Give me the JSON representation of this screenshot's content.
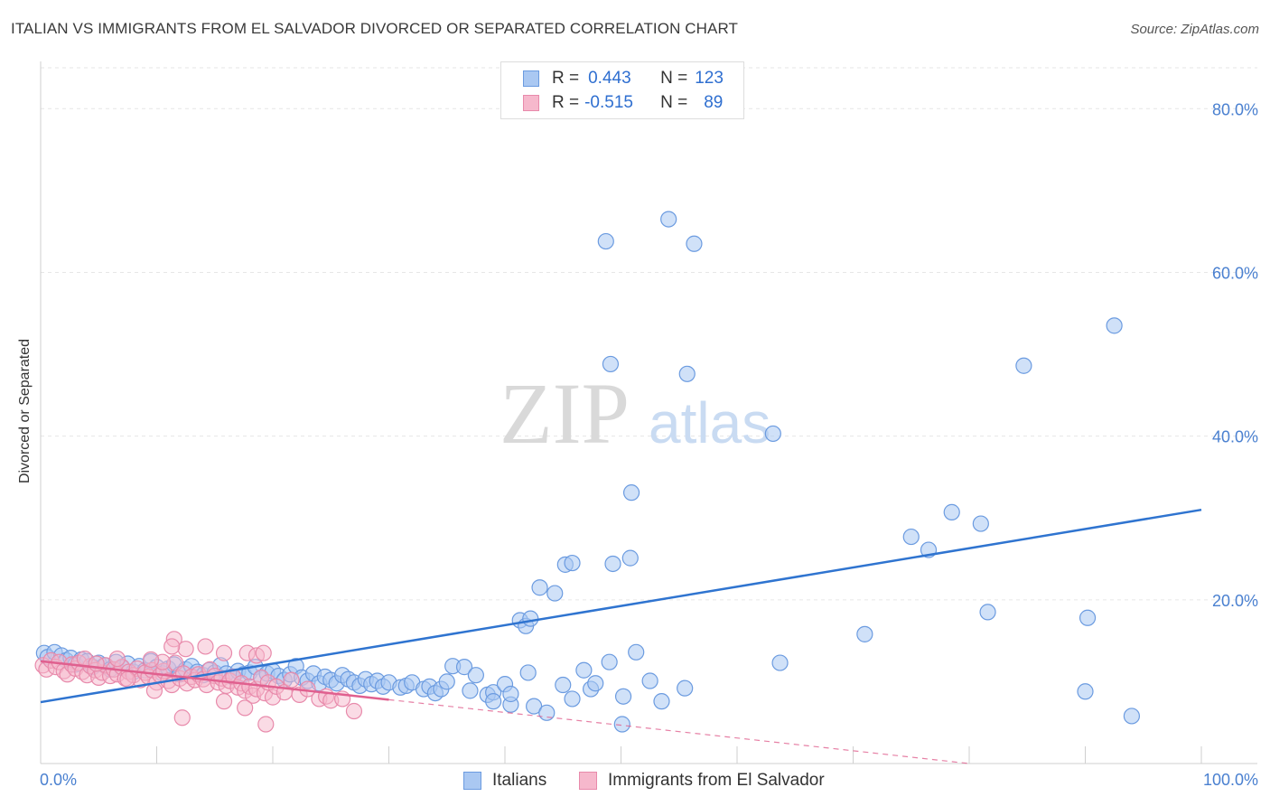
{
  "header": {
    "title": "ITALIAN VS IMMIGRANTS FROM EL SALVADOR DIVORCED OR SEPARATED CORRELATION CHART",
    "source": "Source: ZipAtlas.com"
  },
  "watermark": {
    "zip": "ZIP",
    "atlas": "atlas"
  },
  "legend": {
    "rows": [
      {
        "r_label": "R =",
        "r_value": "0.443",
        "n_label": "N =",
        "n_value": "123"
      },
      {
        "r_label": "R =",
        "r_value": "-0.515",
        "n_label": "N =",
        "n_value": "89"
      }
    ]
  },
  "bottom_legend": {
    "italians": "Italians",
    "salvador": "Immigrants from El Salvador"
  },
  "colors": {
    "italians_fill": "#aac8f2",
    "italians_stroke": "#6b9be0",
    "italians_line": "#2f74d0",
    "salvador_fill": "#f6b8cc",
    "salvador_stroke": "#e88aab",
    "salvador_line": "#e0608f",
    "grid": "#e6e6e6",
    "tick_text": "#4a80d0"
  },
  "chart_data": {
    "type": "scatter",
    "title": "ITALIAN VS IMMIGRANTS FROM EL SALVADOR DIVORCED OR SEPARATED CORRELATION CHART",
    "xlabel": "",
    "ylabel": "Divorced or Separated",
    "xlim": [
      0,
      100
    ],
    "ylim": [
      0,
      85
    ],
    "x_tick_labels": [
      "0.0%",
      "100.0%"
    ],
    "y_ticks": [
      20,
      40,
      60,
      80
    ],
    "y_tick_labels": [
      "20.0%",
      "40.0%",
      "60.0%",
      "80.0%"
    ],
    "grid": true,
    "legend_position": "top-center",
    "series": [
      {
        "name": "Italians",
        "r": 0.443,
        "n": 123,
        "trend": {
          "x0": 0,
          "y0": 7.5,
          "x1": 100,
          "y1": 31
        },
        "points": [
          [
            0.3,
            13.5
          ],
          [
            0.6,
            13
          ],
          [
            1.2,
            13.6
          ],
          [
            1.8,
            13.2
          ],
          [
            2.2,
            12.6
          ],
          [
            2.6,
            12.9
          ],
          [
            3,
            12.1
          ],
          [
            3.5,
            12.7
          ],
          [
            4,
            12.5
          ],
          [
            4.5,
            11.8
          ],
          [
            5,
            12.3
          ],
          [
            5.5,
            12
          ],
          [
            6,
            11.5
          ],
          [
            6.5,
            12.4
          ],
          [
            7,
            11.7
          ],
          [
            7.5,
            12.2
          ],
          [
            8,
            11.2
          ],
          [
            8.5,
            11.9
          ],
          [
            9,
            11.4
          ],
          [
            9.5,
            12.5
          ],
          [
            10,
            11.8
          ],
          [
            10.5,
            11
          ],
          [
            11,
            11.6
          ],
          [
            11.5,
            12.1
          ],
          [
            12,
            10.9
          ],
          [
            12.5,
            11.5
          ],
          [
            13,
            11.9
          ],
          [
            13.5,
            11.2
          ],
          [
            14,
            10.8
          ],
          [
            14.5,
            11.4
          ],
          [
            15,
            11.1
          ],
          [
            15.5,
            12
          ],
          [
            16,
            11
          ],
          [
            16.5,
            10.6
          ],
          [
            17,
            11.3
          ],
          [
            17.5,
            10.9
          ],
          [
            18,
            11.1
          ],
          [
            18.5,
            11.8
          ],
          [
            19,
            10.4
          ],
          [
            19.5,
            11
          ],
          [
            20,
            11.3
          ],
          [
            20.5,
            10.7
          ],
          [
            21,
            10.2
          ],
          [
            21.5,
            10.9
          ],
          [
            22,
            11.9
          ],
          [
            22.5,
            10.5
          ],
          [
            23,
            10.1
          ],
          [
            23.5,
            11
          ],
          [
            24,
            9.8
          ],
          [
            24.5,
            10.6
          ],
          [
            25,
            10.2
          ],
          [
            25.5,
            9.8
          ],
          [
            26,
            10.8
          ],
          [
            26.5,
            10.3
          ],
          [
            27,
            9.9
          ],
          [
            27.5,
            9.5
          ],
          [
            28,
            10.3
          ],
          [
            28.5,
            9.7
          ],
          [
            29,
            10.1
          ],
          [
            29.5,
            9.4
          ],
          [
            30,
            9.9
          ],
          [
            31,
            9.3
          ],
          [
            31.5,
            9.5
          ],
          [
            32,
            9.9
          ],
          [
            33,
            9.1
          ],
          [
            33.5,
            9.4
          ],
          [
            34,
            8.6
          ],
          [
            34.5,
            9.1
          ],
          [
            35,
            10
          ],
          [
            35.5,
            11.9
          ],
          [
            36.5,
            11.8
          ],
          [
            37,
            8.9
          ],
          [
            37.5,
            10.8
          ],
          [
            38.5,
            8.4
          ],
          [
            39,
            8.7
          ],
          [
            39,
            7.6
          ],
          [
            40,
            9.7
          ],
          [
            40.5,
            7.2
          ],
          [
            40.5,
            8.5
          ],
          [
            42,
            11.1
          ],
          [
            41.3,
            17.5
          ],
          [
            41.8,
            16.8
          ],
          [
            42.2,
            17.7
          ],
          [
            42.5,
            7
          ],
          [
            43,
            21.5
          ],
          [
            43.6,
            6.2
          ],
          [
            44.3,
            20.8
          ],
          [
            45.2,
            24.3
          ],
          [
            45.8,
            24.5
          ],
          [
            45,
            9.6
          ],
          [
            45.8,
            7.9
          ],
          [
            46.8,
            11.4
          ],
          [
            47.4,
            9.1
          ],
          [
            47.8,
            9.8
          ],
          [
            49,
            12.4
          ],
          [
            49.3,
            24.4
          ],
          [
            50.2,
            8.2
          ],
          [
            50.8,
            25.1
          ],
          [
            50.1,
            4.8
          ],
          [
            51.3,
            13.6
          ],
          [
            52.5,
            10.1
          ],
          [
            53.5,
            7.6
          ],
          [
            55.5,
            9.2
          ],
          [
            63.7,
            12.3
          ],
          [
            71,
            15.8
          ],
          [
            90,
            8.8
          ],
          [
            94,
            5.8
          ],
          [
            48.7,
            63.8
          ],
          [
            49.1,
            48.8
          ],
          [
            50.9,
            33.1
          ],
          [
            54.1,
            66.5
          ],
          [
            55.7,
            47.6
          ],
          [
            56.3,
            63.5
          ],
          [
            63.1,
            40.3
          ],
          [
            75,
            27.7
          ],
          [
            76.5,
            26.1
          ],
          [
            78.5,
            30.7
          ],
          [
            81,
            29.3
          ],
          [
            81.6,
            18.5
          ],
          [
            84.7,
            48.6
          ],
          [
            90.2,
            17.8
          ],
          [
            92.5,
            53.5
          ]
        ]
      },
      {
        "name": "Immigrants from El Salvador",
        "r": -0.515,
        "n": 89,
        "trend": {
          "x0": 0,
          "y0": 12.5,
          "x1": 30,
          "y1": 7.8,
          "dashed_to_x": 80,
          "dashed_to_y": 0
        },
        "points": [
          [
            0.2,
            12
          ],
          [
            0.5,
            11.5
          ],
          [
            0.9,
            12.6
          ],
          [
            1.3,
            11.8
          ],
          [
            1.6,
            12.4
          ],
          [
            2,
            11.3
          ],
          [
            2.3,
            10.9
          ],
          [
            2.7,
            12.1
          ],
          [
            3,
            11.6
          ],
          [
            3.3,
            12.3
          ],
          [
            3.6,
            11.2
          ],
          [
            4,
            10.8
          ],
          [
            4.3,
            11.9
          ],
          [
            4.7,
            11.4
          ],
          [
            5,
            10.5
          ],
          [
            5.3,
            11.1
          ],
          [
            5.6,
            12
          ],
          [
            6,
            10.7
          ],
          [
            6.3,
            11.5
          ],
          [
            6.6,
            10.9
          ],
          [
            7,
            11.8
          ],
          [
            7.3,
            10.4
          ],
          [
            7.6,
            11.2
          ],
          [
            8,
            10.8
          ],
          [
            8.3,
            11.6
          ],
          [
            8.6,
            10.2
          ],
          [
            9,
            11.1
          ],
          [
            9.3,
            10.6
          ],
          [
            9.6,
            11.4
          ],
          [
            10,
            9.9
          ],
          [
            10.3,
            10.8
          ],
          [
            10.6,
            11.3
          ],
          [
            11,
            10.1
          ],
          [
            11.3,
            9.6
          ],
          [
            11.6,
            12.3
          ],
          [
            12,
            10.4
          ],
          [
            12.3,
            11
          ],
          [
            12.6,
            9.8
          ],
          [
            13,
            10.6
          ],
          [
            13.3,
            10.2
          ],
          [
            13.6,
            10.9
          ],
          [
            14,
            10.3
          ],
          [
            14.3,
            9.6
          ],
          [
            14.6,
            11.5
          ],
          [
            15,
            10.7
          ],
          [
            15.3,
            9.9
          ],
          [
            15.6,
            10.4
          ],
          [
            16,
            9.5
          ],
          [
            16.3,
            10.1
          ],
          [
            16.6,
            10.6
          ],
          [
            17,
            9.3
          ],
          [
            17.3,
            9.8
          ],
          [
            17.6,
            8.9
          ],
          [
            18,
            9.4
          ],
          [
            18.3,
            8.3
          ],
          [
            18.6,
            9.1
          ],
          [
            19,
            10.5
          ],
          [
            19.3,
            8.6
          ],
          [
            19.6,
            9.9
          ],
          [
            20,
            8.1
          ],
          [
            20.3,
            9.4
          ],
          [
            21,
            8.7
          ],
          [
            21.6,
            10.2
          ],
          [
            22.3,
            8.4
          ],
          [
            23,
            9.1
          ],
          [
            24,
            7.9
          ],
          [
            24.6,
            8.2
          ],
          [
            25,
            7.7
          ],
          [
            26,
            7.9
          ],
          [
            27,
            6.4
          ],
          [
            11.5,
            15.2
          ],
          [
            12.5,
            14
          ],
          [
            14.2,
            14.3
          ],
          [
            15.8,
            13.5
          ],
          [
            17.8,
            13.5
          ],
          [
            18.6,
            13.2
          ],
          [
            19.2,
            13.5
          ],
          [
            11.3,
            14.3
          ],
          [
            10.5,
            12.4
          ],
          [
            9.5,
            12.7
          ],
          [
            6.6,
            12.8
          ],
          [
            3.8,
            12.8
          ],
          [
            4.8,
            12.2
          ],
          [
            7.5,
            10.3
          ],
          [
            9.8,
            8.9
          ],
          [
            12.2,
            5.6
          ],
          [
            15.8,
            7.6
          ],
          [
            17.6,
            6.8
          ],
          [
            19.4,
            4.8
          ]
        ]
      }
    ]
  }
}
